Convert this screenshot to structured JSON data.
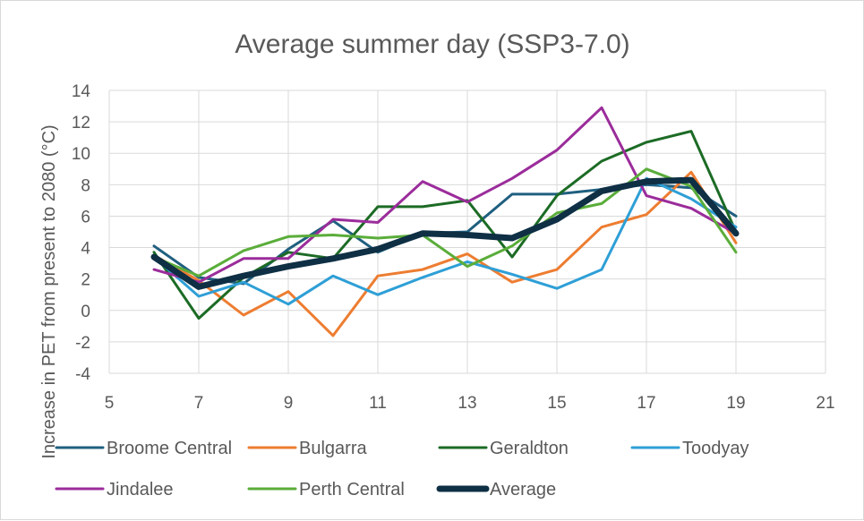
{
  "chart_data": {
    "type": "line",
    "title": "Average summer day (SSP3-7.0)",
    "xlabel": "",
    "ylabel": "Increase in PET from present to 2080 (°C)",
    "xlim": [
      5,
      21
    ],
    "ylim": [
      -4,
      14
    ],
    "xticks": [
      5,
      7,
      9,
      11,
      13,
      15,
      17,
      19,
      21
    ],
    "yticks": [
      -4,
      -2,
      0,
      2,
      4,
      6,
      8,
      10,
      12,
      14
    ],
    "grid": true,
    "legend_position": "bottom",
    "x": [
      6,
      7,
      8,
      9,
      10,
      11,
      12,
      13,
      14,
      15,
      16,
      17,
      18,
      19
    ],
    "series": [
      {
        "name": "Broome Central",
        "color": "#1f5f7f",
        "width": 3,
        "values": [
          4.1,
          2.1,
          1.7,
          3.9,
          5.7,
          3.7,
          4.9,
          5.0,
          7.4,
          7.4,
          7.7,
          8.0,
          7.8,
          6.0
        ]
      },
      {
        "name": "Bulgarra",
        "color": "#ed7d31",
        "width": 3,
        "values": [
          3.5,
          1.9,
          -0.3,
          1.2,
          -1.6,
          2.2,
          2.6,
          3.6,
          1.8,
          2.6,
          5.3,
          6.1,
          8.8,
          4.3
        ]
      },
      {
        "name": "Geraldton",
        "color": "#1c6b25",
        "width": 3,
        "values": [
          3.7,
          -0.5,
          2.1,
          3.7,
          3.3,
          6.6,
          6.6,
          7.0,
          3.4,
          7.3,
          9.5,
          10.7,
          11.4,
          5.0
        ]
      },
      {
        "name": "Toodyay",
        "color": "#2e9fd6",
        "width": 3,
        "values": [
          3.4,
          0.9,
          1.8,
          0.4,
          2.2,
          1.0,
          2.1,
          3.1,
          2.3,
          1.4,
          2.6,
          8.4,
          7.1,
          5.3
        ]
      },
      {
        "name": "Jindalee",
        "color": "#9b2c9b",
        "width": 3,
        "values": [
          2.6,
          1.8,
          3.3,
          3.3,
          5.8,
          5.6,
          8.2,
          6.9,
          8.4,
          10.2,
          12.9,
          7.3,
          6.5,
          4.9
        ]
      },
      {
        "name": "Perth Central",
        "color": "#5aad3a",
        "width": 3,
        "values": [
          3.4,
          2.2,
          3.8,
          4.7,
          4.8,
          4.6,
          4.8,
          2.8,
          4.1,
          6.2,
          6.8,
          9.0,
          7.9,
          3.7
        ]
      },
      {
        "name": "Average",
        "color": "#0e2f44",
        "width": 7,
        "values": [
          3.4,
          1.5,
          2.2,
          2.8,
          3.3,
          3.9,
          4.9,
          4.8,
          4.6,
          5.8,
          7.6,
          8.2,
          8.3,
          4.9
        ]
      }
    ]
  }
}
